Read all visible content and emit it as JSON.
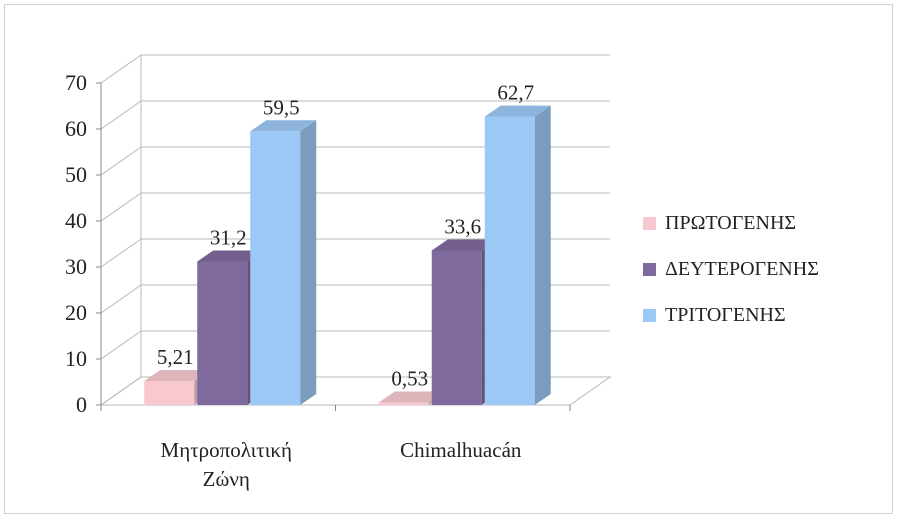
{
  "chart_data": {
    "type": "bar",
    "title": "",
    "xlabel": "",
    "ylabel": "",
    "categories": [
      "Μητροπολιτική Ζώνη",
      "Chimalhuacán"
    ],
    "category_lines": [
      [
        "Μητροπολιτική",
        "Ζώνη"
      ],
      [
        "Chimalhuacán"
      ]
    ],
    "series": [
      {
        "name": "ΠΡΩΤΟΓΕΝΗΣ",
        "values": [
          5.21,
          0.53
        ],
        "labels": [
          "5,21",
          "0,53"
        ],
        "color": "#f7c9cf"
      },
      {
        "name": "ΔΕΥΤΕΡΟΓΕΝΗΣ",
        "values": [
          31.2,
          33.6
        ],
        "labels": [
          "31,2",
          "33,6"
        ],
        "color": "#7f6a9d"
      },
      {
        "name": "ΤΡΙΤΟΓΕΝΗΣ",
        "values": [
          59.5,
          62.7
        ],
        "labels": [
          "59,5",
          "62,7"
        ],
        "color": "#9cc8f5"
      }
    ],
    "ylim": [
      0,
      70
    ],
    "yticks": [
      0,
      10,
      20,
      30,
      40,
      50,
      60,
      70
    ],
    "grid": true,
    "legend_position": "right",
    "style": "3d-clustered-column"
  }
}
